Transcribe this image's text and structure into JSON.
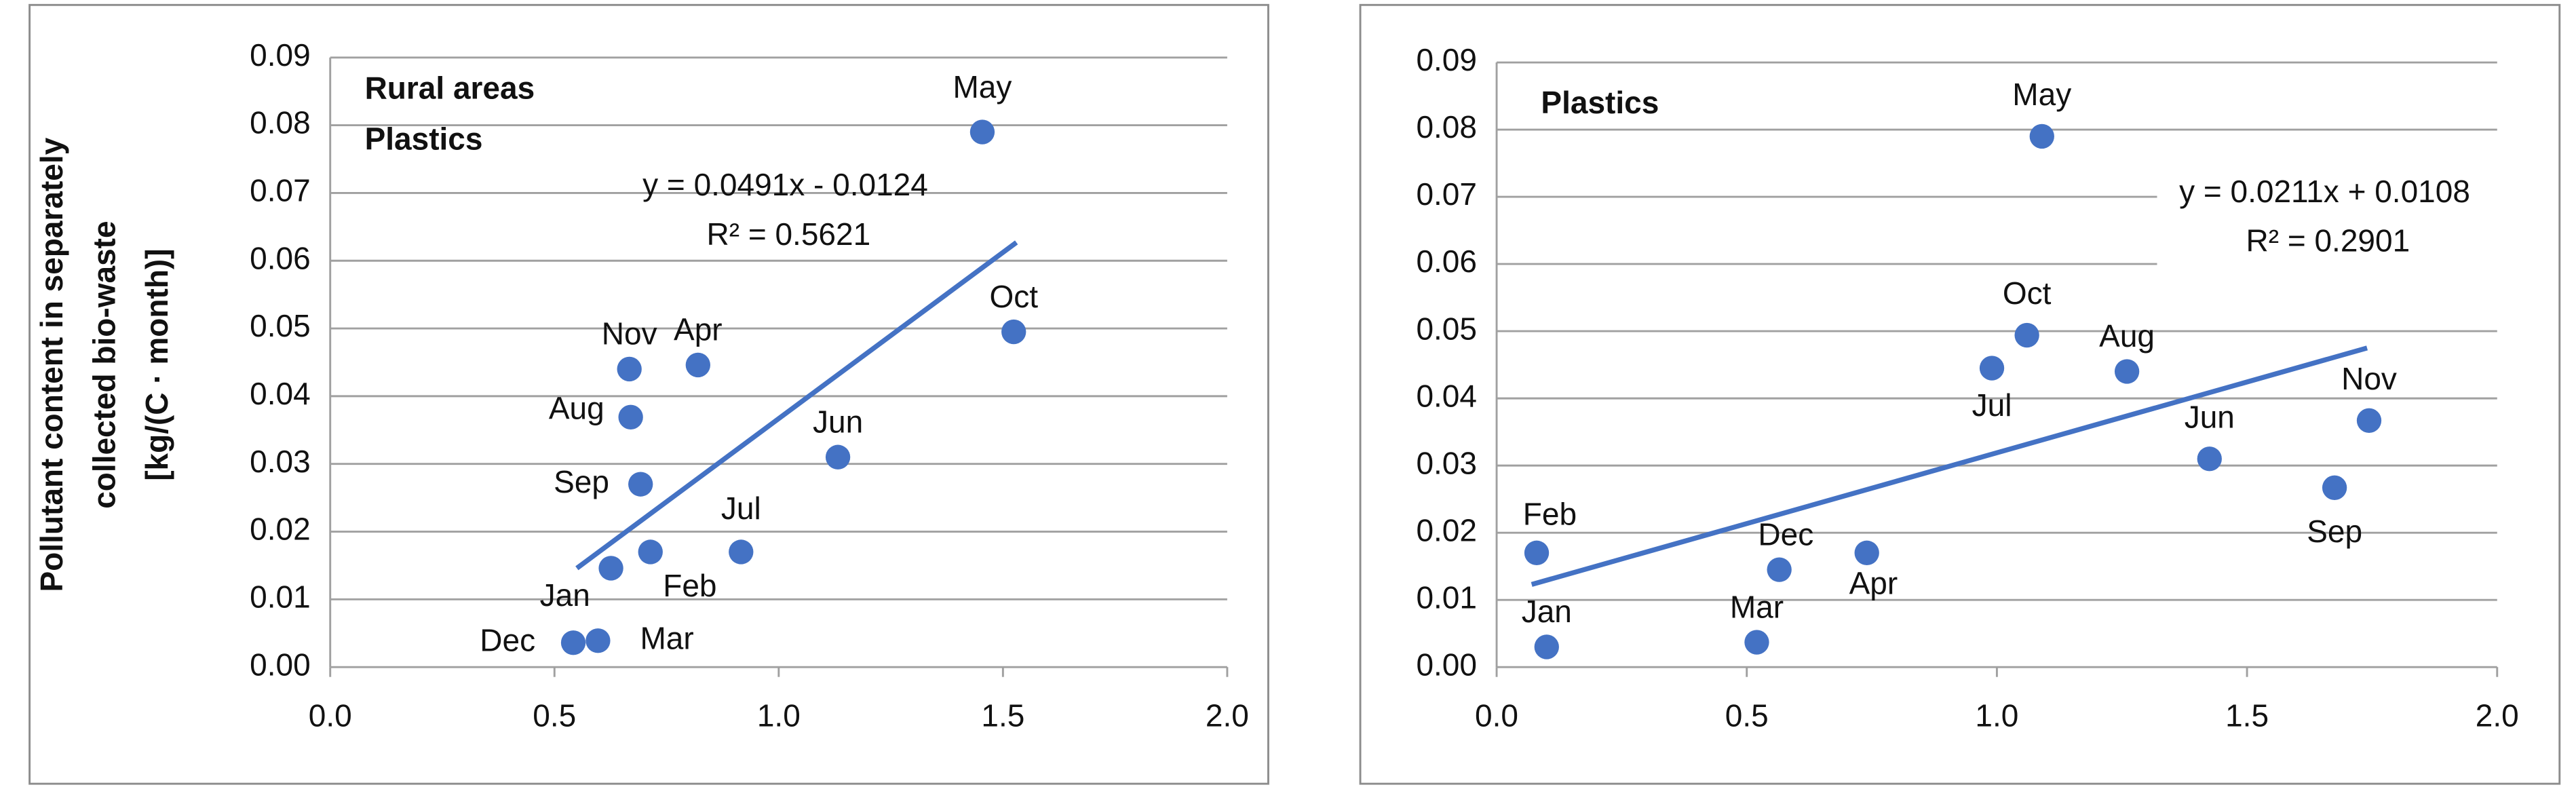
{
  "chart_data": [
    {
      "type": "scatter",
      "annotation": [
        "Rural areas",
        "Plastics"
      ],
      "y_label": [
        "Pollutant  content  in separately",
        "collected bio-waste",
        "[kg/(C · month)]"
      ],
      "categories": [
        "May",
        "Oct",
        "Nov",
        "Apr",
        "Aug",
        "Jun",
        "Sep",
        "Jul",
        "Feb",
        "Jan",
        "Dec",
        "Mar"
      ],
      "x": [
        1.454,
        1.524,
        0.667,
        0.82,
        0.67,
        1.132,
        0.692,
        0.916,
        0.714,
        0.626,
        0.542,
        0.597
      ],
      "values": [
        0.079,
        0.0495,
        0.044,
        0.0446,
        0.0369,
        0.031,
        0.027,
        0.017,
        0.017,
        0.0146,
        0.0036,
        0.0039
      ],
      "color": "#4472c4",
      "trendline": {
        "equation": "y = 0.0491x - 0.0124",
        "r_squared": "R² = 0.5621",
        "x": [
          0.55,
          1.53
        ],
        "values": [
          0.0146,
          0.0627
        ]
      },
      "xlim": [
        0,
        2
      ],
      "xticks": [
        {
          "value": 0,
          "label": "0.0"
        },
        0.5,
        {
          "value": 1,
          "label": "1.0"
        },
        1.5,
        {
          "value": 2,
          "label": "2.0"
        }
      ],
      "ylim": [
        0,
        0.09
      ],
      "yticks": [
        {
          "value": 0,
          "label": "0.00"
        },
        0.01,
        0.02,
        0.03,
        0.04,
        0.05,
        0.06,
        0.07,
        0.08,
        0.09
      ],
      "grid": true
    },
    {
      "type": "scatter",
      "annotation": [
        "Plastics"
      ],
      "categories": [
        "May",
        "Oct",
        "Jul",
        "Aug",
        "Nov",
        "Jun",
        "Sep",
        "Feb",
        "Dec",
        "Apr",
        "Jan",
        "Mar"
      ],
      "x": [
        1.09,
        1.06,
        0.99,
        1.26,
        1.744,
        1.425,
        1.675,
        0.08,
        0.565,
        0.74,
        0.1,
        0.52
      ],
      "values": [
        0.079,
        0.0494,
        0.0445,
        0.044,
        0.0367,
        0.031,
        0.0267,
        0.017,
        0.0145,
        0.017,
        0.003,
        0.0037
      ],
      "color": "#4472c4",
      "trendline": {
        "equation": "y = 0.0211x + 0.0108",
        "r_squared": "R² = 0.2901",
        "x": [
          0.07,
          1.74
        ],
        "values": [
          0.0123,
          0.0475
        ]
      },
      "xlim": [
        0,
        2
      ],
      "xticks": [
        {
          "value": 0,
          "label": "0.0"
        },
        0.5,
        {
          "value": 1,
          "label": "1.0"
        },
        1.5,
        {
          "value": 2,
          "label": "2.0"
        }
      ],
      "ylim": [
        0,
        0.09
      ],
      "yticks": [
        {
          "value": 0,
          "label": "0.00"
        },
        0.01,
        0.02,
        0.03,
        0.04,
        0.05,
        0.06,
        0.07,
        0.08,
        0.09
      ],
      "grid": true
    }
  ]
}
